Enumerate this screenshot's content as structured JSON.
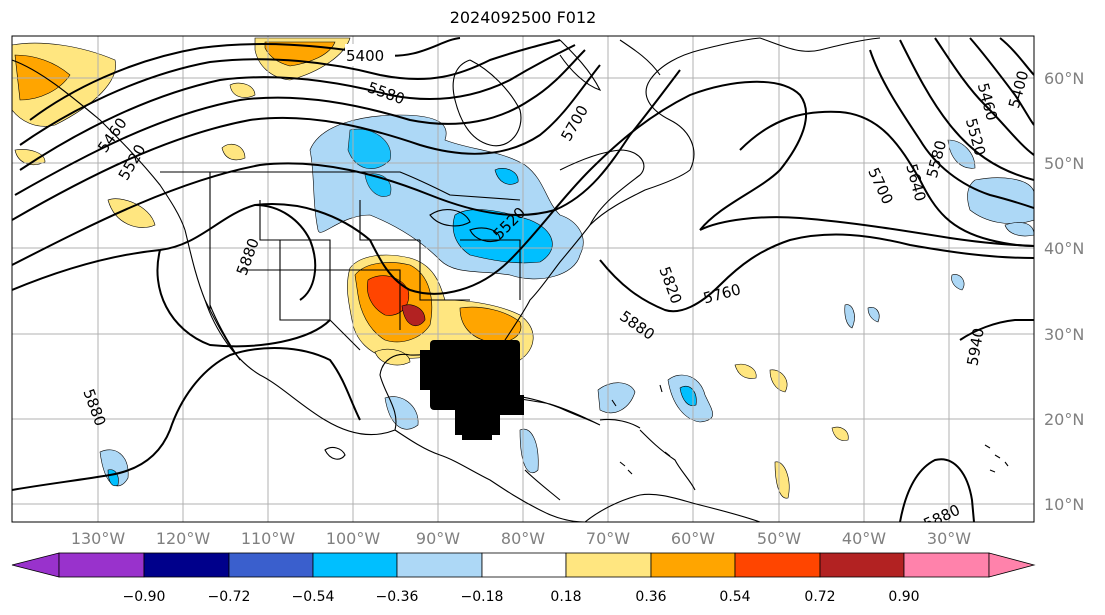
{
  "title": "2024092500 F012",
  "lon_labels": [
    "130°W",
    "120°W",
    "110°W",
    "100°W",
    "90°W",
    "80°W",
    "70°W",
    "60°W",
    "50°W",
    "40°W",
    "30°W"
  ],
  "lat_labels": [
    "60°N",
    "50°N",
    "40°N",
    "30°N",
    "20°N",
    "10°N"
  ],
  "contour_labels": [
    "5400",
    "5460",
    "5520",
    "5580",
    "5640",
    "5700",
    "5760",
    "5820",
    "5880",
    "5940"
  ],
  "colorbar": {
    "ticks": [
      "−0.90",
      "−0.72",
      "−0.54",
      "−0.36",
      "−0.18",
      "0.18",
      "0.36",
      "0.54",
      "0.72",
      "0.90"
    ],
    "colors": [
      "#9932cc",
      "#00008b",
      "#3a5fcd",
      "#00bfff",
      "#add8f6",
      "#ffffff",
      "#ffe680",
      "#ffa500",
      "#ff4500",
      "#b22222",
      "#ff82ab"
    ]
  },
  "colors": {
    "coast": "#000000",
    "grid": "#b0b0b0",
    "contour": "#000000"
  }
}
